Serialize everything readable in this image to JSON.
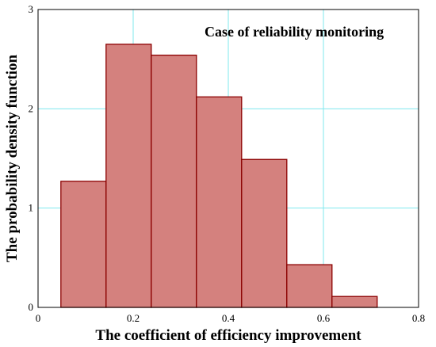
{
  "chart_data": {
    "type": "bar",
    "title": "",
    "annotation": "Case of reliability monitoring",
    "xlabel": "The coefficient of efficiency improvement",
    "ylabel": "The probability density function",
    "xlim": [
      0,
      0.8
    ],
    "ylim": [
      0,
      3
    ],
    "x_ticks": [
      0,
      0.2,
      0.4,
      0.6,
      0.8
    ],
    "x_tick_labels": [
      "0",
      "0.2",
      "0.4",
      "0.6",
      "0.8"
    ],
    "y_ticks": [
      0,
      1,
      2,
      3
    ],
    "y_tick_labels": [
      "0",
      "1",
      "2",
      "3"
    ],
    "grid": true,
    "bins": [
      {
        "x0": 0.048,
        "x1": 0.143,
        "value": 1.27
      },
      {
        "x0": 0.143,
        "x1": 0.238,
        "value": 2.65
      },
      {
        "x0": 0.238,
        "x1": 0.333,
        "value": 2.54
      },
      {
        "x0": 0.333,
        "x1": 0.428,
        "value": 2.12
      },
      {
        "x0": 0.428,
        "x1": 0.523,
        "value": 1.49
      },
      {
        "x0": 0.523,
        "x1": 0.618,
        "value": 0.43
      },
      {
        "x0": 0.618,
        "x1": 0.713,
        "value": 0.11
      }
    ],
    "colors": {
      "bar_fill": "#d4817e",
      "bar_stroke": "#8b0000",
      "grid": "#7fe8ee",
      "axis": "#000000"
    }
  }
}
